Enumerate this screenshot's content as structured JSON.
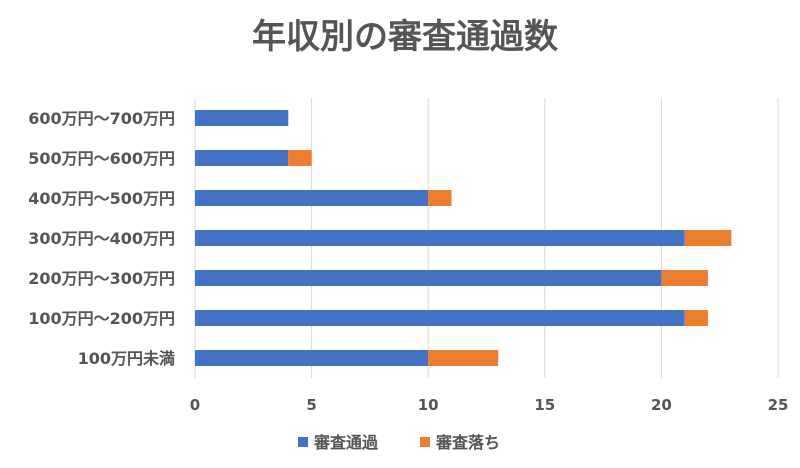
{
  "chart_data": {
    "type": "bar",
    "orientation": "horizontal",
    "stacked": true,
    "title": "年収別の審査通過数",
    "categories": [
      "600万円〜700万円",
      "500万円〜600万円",
      "400万円〜500万円",
      "300万円〜400万円",
      "200万円〜300万円",
      "100万円〜200万円",
      "100万円未満"
    ],
    "series": [
      {
        "name": "審査通過",
        "color": "#4472C4",
        "values": [
          4,
          4,
          10,
          21,
          20,
          21,
          10
        ]
      },
      {
        "name": "審査落ち",
        "color": "#ED7D31",
        "values": [
          0,
          1,
          1,
          2,
          2,
          1,
          3
        ]
      }
    ],
    "xlim": [
      0,
      25
    ],
    "xticks": [
      0,
      5,
      10,
      15,
      20,
      25
    ],
    "grid": true,
    "legend_position": "bottom"
  }
}
